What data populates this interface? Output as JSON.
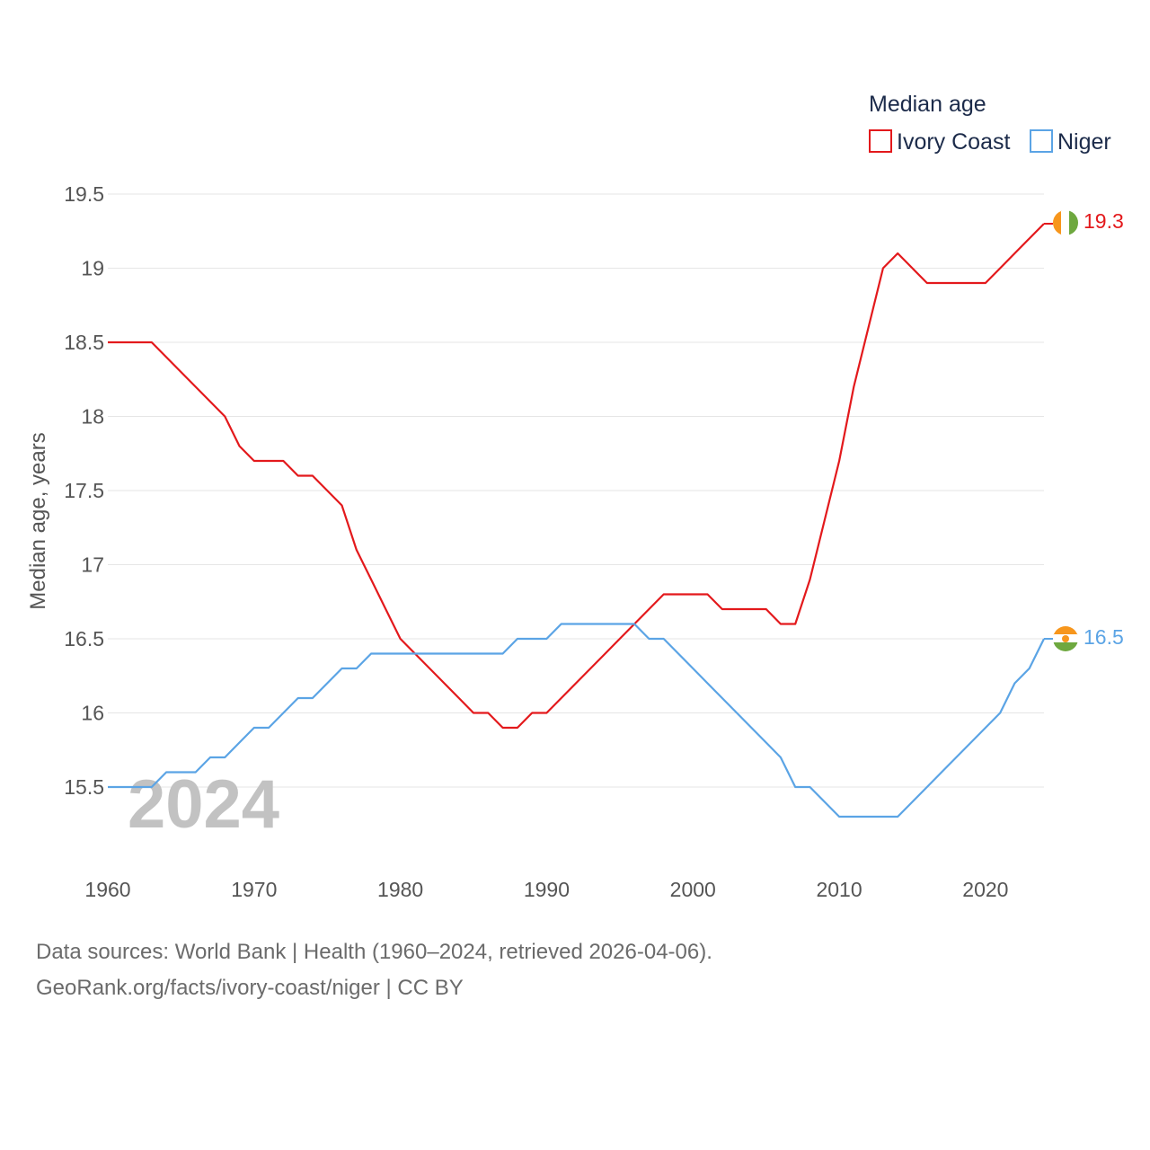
{
  "chart_data": {
    "type": "line",
    "title": "Median age",
    "ylabel": "Median age, years",
    "xlabel": "",
    "year_label": "2024",
    "xlim": [
      1960,
      2024
    ],
    "ylim": [
      15.0,
      19.6
    ],
    "x_ticks": [
      1960,
      1970,
      1980,
      1990,
      2000,
      2010,
      2020
    ],
    "y_ticks": [
      15.5,
      16,
      16.5,
      17,
      17.5,
      18,
      18.5,
      19,
      19.5
    ],
    "y_tick_labels": [
      "15.5",
      "16",
      "16.5",
      "17",
      "17.5",
      "18",
      "18.5",
      "19",
      "19.5"
    ],
    "x": [
      1960,
      1961,
      1962,
      1963,
      1964,
      1965,
      1966,
      1967,
      1968,
      1969,
      1970,
      1971,
      1972,
      1973,
      1974,
      1975,
      1976,
      1977,
      1978,
      1979,
      1980,
      1981,
      1982,
      1983,
      1984,
      1985,
      1986,
      1987,
      1988,
      1989,
      1990,
      1991,
      1992,
      1993,
      1994,
      1995,
      1996,
      1997,
      1998,
      1999,
      2000,
      2001,
      2002,
      2003,
      2004,
      2005,
      2006,
      2007,
      2008,
      2009,
      2010,
      2011,
      2012,
      2013,
      2014,
      2015,
      2016,
      2017,
      2018,
      2019,
      2020,
      2021,
      2022,
      2023,
      2024
    ],
    "series": [
      {
        "name": "Ivory Coast",
        "color": "#e3191c",
        "end_label": "19.3",
        "values": [
          18.5,
          18.5,
          18.5,
          18.5,
          18.4,
          18.3,
          18.2,
          18.1,
          18.0,
          17.8,
          17.7,
          17.7,
          17.7,
          17.6,
          17.6,
          17.5,
          17.4,
          17.1,
          16.9,
          16.7,
          16.5,
          16.4,
          16.3,
          16.2,
          16.1,
          16.0,
          16.0,
          15.9,
          15.9,
          16.0,
          16.0,
          16.1,
          16.2,
          16.3,
          16.4,
          16.5,
          16.6,
          16.7,
          16.8,
          16.8,
          16.8,
          16.8,
          16.7,
          16.7,
          16.7,
          16.7,
          16.6,
          16.6,
          16.9,
          17.3,
          17.7,
          18.2,
          18.6,
          19.0,
          19.1,
          19.0,
          18.9,
          18.9,
          18.9,
          18.9,
          18.9,
          19.0,
          19.1,
          19.2,
          19.3
        ]
      },
      {
        "name": "Niger",
        "color": "#5ba4e5",
        "end_label": "16.5",
        "values": [
          15.5,
          15.5,
          15.5,
          15.5,
          15.6,
          15.6,
          15.6,
          15.7,
          15.7,
          15.8,
          15.9,
          15.9,
          16.0,
          16.1,
          16.1,
          16.2,
          16.3,
          16.3,
          16.4,
          16.4,
          16.4,
          16.4,
          16.4,
          16.4,
          16.4,
          16.4,
          16.4,
          16.4,
          16.5,
          16.5,
          16.5,
          16.6,
          16.6,
          16.6,
          16.6,
          16.6,
          16.6,
          16.5,
          16.5,
          16.4,
          16.3,
          16.2,
          16.1,
          16.0,
          15.9,
          15.8,
          15.7,
          15.5,
          15.5,
          15.4,
          15.3,
          15.3,
          15.3,
          15.3,
          15.3,
          15.4,
          15.5,
          15.6,
          15.7,
          15.8,
          15.9,
          16.0,
          16.2,
          16.3,
          16.5
        ]
      }
    ]
  },
  "footer": {
    "line1": "Data sources: World Bank | Health (1960–2024, retrieved 2026-04-06).",
    "line2": "GeoRank.org/facts/ivory-coast/niger | CC BY"
  },
  "colors": {
    "grid": "#e6e6e6",
    "ivory_coast_orange": "#f7961c",
    "ivory_coast_green": "#6ea83f",
    "niger_orange": "#f7961c",
    "niger_green": "#6ea83f"
  }
}
